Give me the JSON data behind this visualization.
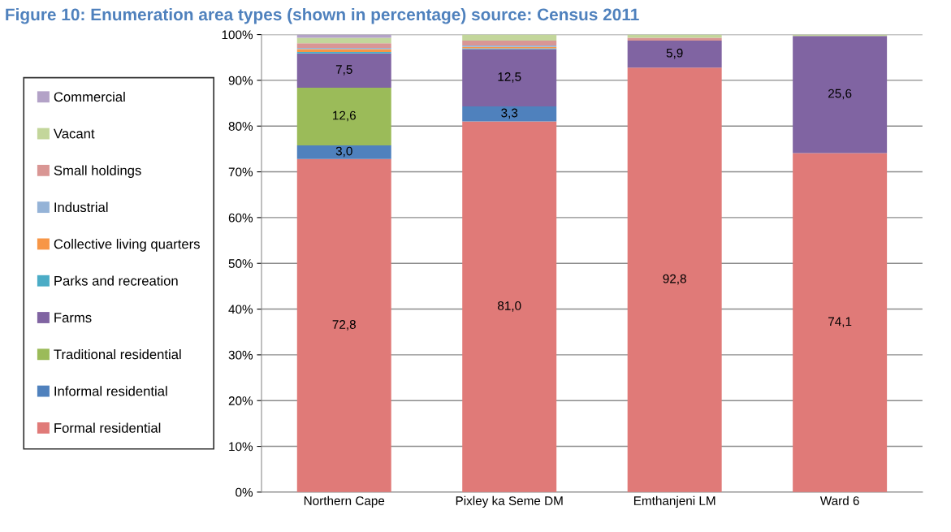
{
  "chart_data": {
    "type": "bar",
    "stacked": true,
    "title": "Figure 10: Enumeration area types (shown in percentage) source: Census 2011",
    "categories": [
      "Northern Cape",
      "Pixley ka Seme DM",
      "Emthanjeni LM",
      "Ward 6"
    ],
    "series": [
      {
        "name": "Formal residential",
        "color": "#e07a78",
        "values": [
          72.8,
          81.0,
          92.8,
          74.1
        ],
        "value_labels": [
          "72,8",
          "81,0",
          "92,8",
          "74,1"
        ]
      },
      {
        "name": "Informal residential",
        "color": "#4f81bd",
        "values": [
          3.0,
          3.3,
          null,
          null
        ],
        "value_labels": [
          "3,0",
          "3,3",
          null,
          null
        ]
      },
      {
        "name": "Traditional residential",
        "color": "#9bbb59",
        "values": [
          12.6,
          null,
          null,
          null
        ],
        "value_labels": [
          "12,6",
          null,
          null,
          null
        ]
      },
      {
        "name": "Farms",
        "color": "#8064a2",
        "values": [
          7.5,
          12.5,
          5.9,
          25.6
        ],
        "value_labels": [
          "7,5",
          "12,5",
          "5,9",
          "25,6"
        ]
      },
      {
        "name": "Parks and recreation",
        "color": "#4bacc6",
        "values": [
          0.3,
          0.2,
          null,
          null
        ]
      },
      {
        "name": "Collective living quarters",
        "color": "#f79646",
        "values": [
          0.6,
          0.3,
          null,
          null
        ]
      },
      {
        "name": "Industrial",
        "color": "#95b3d7",
        "values": [
          0.3,
          0.3,
          null,
          null
        ]
      },
      {
        "name": "Small holdings",
        "color": "#d99694",
        "values": [
          1.0,
          1.1,
          0.6,
          null
        ]
      },
      {
        "name": "Vacant",
        "color": "#c3d69b",
        "values": [
          1.2,
          1.3,
          0.7,
          0.3
        ]
      },
      {
        "name": "Commercial",
        "color": "#b3a2c7",
        "values": [
          0.7,
          null,
          null,
          null
        ]
      }
    ],
    "ylim": [
      0,
      100
    ],
    "yticks": [
      {
        "value": 0,
        "label": "0%"
      },
      {
        "value": 10,
        "label": "10%"
      },
      {
        "value": 20,
        "label": "20%"
      },
      {
        "value": 30,
        "label": "30%"
      },
      {
        "value": 40,
        "label": "40%"
      },
      {
        "value": 50,
        "label": "50%"
      },
      {
        "value": 60,
        "label": "60%"
      },
      {
        "value": 70,
        "label": "70%"
      },
      {
        "value": 80,
        "label": "80%"
      },
      {
        "value": 90,
        "label": "90%"
      },
      {
        "value": 100,
        "label": "100%"
      }
    ],
    "grid": "y",
    "legend": "left"
  }
}
